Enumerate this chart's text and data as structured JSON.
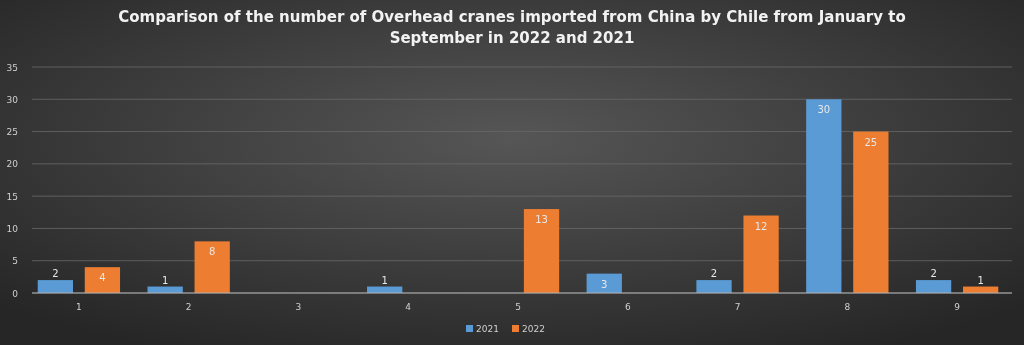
{
  "chart_data": {
    "type": "bar",
    "title": "Comparison of the number of Overhead cranes imported from China by Chile from January to September in 2022 and 2021",
    "categories": [
      "1",
      "2",
      "3",
      "4",
      "5",
      "6",
      "7",
      "8",
      "9"
    ],
    "series": [
      {
        "name": "2021",
        "color": "#5b9bd5",
        "values": [
          2,
          1,
          null,
          1,
          null,
          3,
          2,
          30,
          2
        ]
      },
      {
        "name": "2022",
        "color": "#ed7d31",
        "values": [
          4,
          8,
          null,
          null,
          13,
          null,
          12,
          25,
          1
        ]
      }
    ],
    "ylim": [
      0,
      35
    ],
    "yticks": [
      0,
      5,
      10,
      15,
      20,
      25,
      30,
      35
    ],
    "grid": "y",
    "legend": "bottom",
    "data_labels": true
  }
}
